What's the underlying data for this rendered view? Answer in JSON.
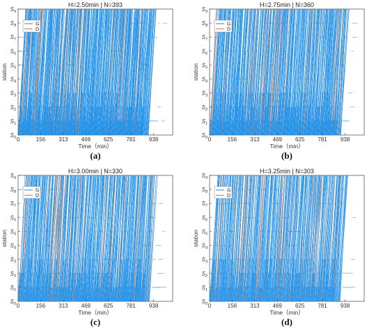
{
  "figure": {
    "panels": [
      {
        "title": "H=2.50min | N=393",
        "caption": "(a)"
      },
      {
        "title": "H=2.75min | N=360",
        "caption": "(b)"
      },
      {
        "title": "H=3.00min | N=330",
        "caption": "(c)"
      },
      {
        "title": "H=3.25min | N=303",
        "caption": "(d)"
      }
    ],
    "colors": {
      "G": "#1f8fe6",
      "D": "#e8743b"
    }
  },
  "chart_data": [
    {
      "type": "line",
      "title": "H=2.50min | N=393",
      "xlabel": "Time（min）",
      "ylabel": "station",
      "x_ticks": [
        "0",
        "156",
        "313",
        "469",
        "625",
        "781",
        "938"
      ],
      "y_ticks": [
        "S0",
        "S1",
        "S2",
        "S3",
        "S4",
        "S5",
        "S6",
        "S7",
        "S8",
        "S9"
      ],
      "xlim": [
        0,
        1070
      ],
      "series": [
        {
          "name": "G"
        },
        {
          "name": "D"
        }
      ],
      "headway_min": 2.5,
      "train_count": 393,
      "legend": "top-left",
      "grid": false
    },
    {
      "type": "line",
      "title": "H=2.75min | N=360",
      "xlabel": "Time（min）",
      "ylabel": "station",
      "x_ticks": [
        "0",
        "156",
        "313",
        "469",
        "625",
        "781",
        "938"
      ],
      "y_ticks": [
        "S0",
        "S1",
        "S2",
        "S3",
        "S4",
        "S5",
        "S6",
        "S7",
        "S8",
        "S9"
      ],
      "xlim": [
        0,
        1070
      ],
      "series": [
        {
          "name": "G"
        },
        {
          "name": "D"
        }
      ],
      "headway_min": 2.75,
      "train_count": 360,
      "legend": "top-left",
      "grid": false
    },
    {
      "type": "line",
      "title": "H=3.00min | N=330",
      "xlabel": "Time（min）",
      "ylabel": "station",
      "x_ticks": [
        "0",
        "156",
        "313",
        "469",
        "625",
        "781",
        "938"
      ],
      "y_ticks": [
        "S0",
        "S1",
        "S2",
        "S3",
        "S4",
        "S5",
        "S6",
        "S7",
        "S8",
        "S9"
      ],
      "xlim": [
        0,
        1070
      ],
      "series": [
        {
          "name": "G"
        },
        {
          "name": "D"
        }
      ],
      "headway_min": 3.0,
      "train_count": 330,
      "legend": "top-left",
      "grid": false
    },
    {
      "type": "line",
      "title": "H=3.25min | N=303",
      "xlabel": "Time（min）",
      "ylabel": "station",
      "x_ticks": [
        "0",
        "156",
        "313",
        "469",
        "625",
        "781",
        "938"
      ],
      "y_ticks": [
        "S0",
        "S1",
        "S2",
        "S3",
        "S4",
        "S5",
        "S6",
        "S7",
        "S8",
        "S9"
      ],
      "xlim": [
        0,
        1070
      ],
      "series": [
        {
          "name": "G"
        },
        {
          "name": "D"
        }
      ],
      "headway_min": 3.25,
      "train_count": 303,
      "legend": "top-left",
      "grid": false
    }
  ]
}
